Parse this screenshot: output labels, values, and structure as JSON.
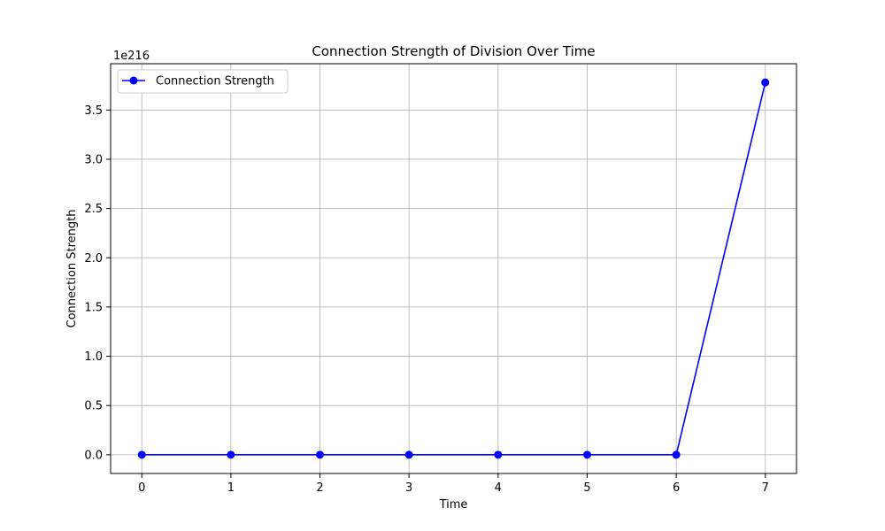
{
  "chart_data": {
    "type": "line",
    "title": "Connection Strength of Division Over Time",
    "xlabel": "Time",
    "ylabel": "Connection Strength",
    "offset_label": "1e216",
    "x": [
      0,
      1,
      2,
      3,
      4,
      5,
      6,
      7
    ],
    "series": [
      {
        "name": "Connection Strength",
        "values": [
          0,
          0,
          0,
          0,
          0,
          0,
          0,
          3.78
        ],
        "color": "#0000ff",
        "marker": "circle"
      }
    ],
    "x_ticks": [
      "0",
      "1",
      "2",
      "3",
      "4",
      "5",
      "6",
      "7"
    ],
    "y_ticks": [
      "0.0",
      "0.5",
      "1.0",
      "1.5",
      "2.0",
      "2.5",
      "3.0",
      "3.5"
    ],
    "y_tick_values": [
      0,
      0.5,
      1.0,
      1.5,
      2.0,
      2.5,
      3.0,
      3.5
    ],
    "xlim": [
      -0.35,
      7.35
    ],
    "ylim": [
      -0.19,
      3.97
    ],
    "grid": true,
    "legend_position": "upper-left",
    "colors": {
      "grid": "#b0b0b0",
      "axes": "#000000",
      "line": "#0000ff"
    }
  }
}
